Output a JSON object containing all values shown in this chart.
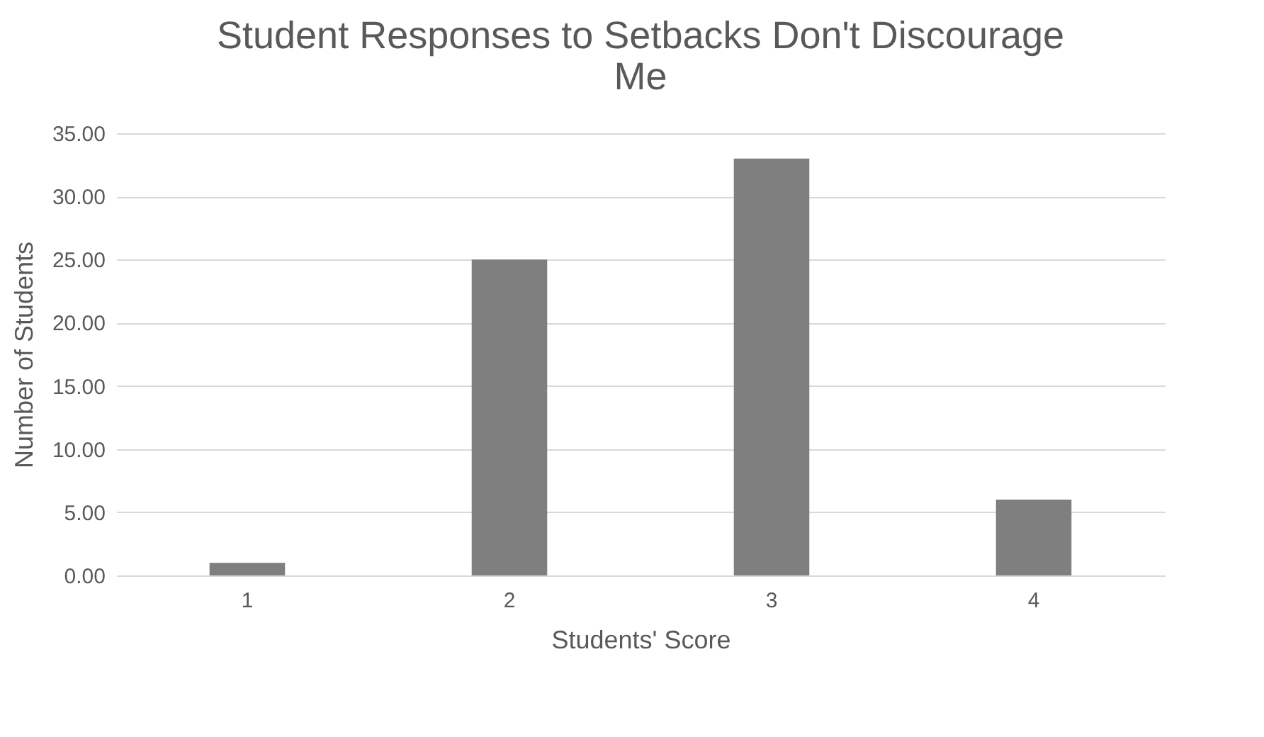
{
  "chart_data": {
    "type": "bar",
    "title": "Student Responses to Setbacks Don't Discourage Me",
    "xlabel": "Students' Score",
    "ylabel": "Number of Students",
    "categories": [
      "1",
      "2",
      "3",
      "4"
    ],
    "values": [
      1,
      25,
      33,
      6
    ],
    "color": "#7f7f7f",
    "ylim": [
      0,
      35
    ],
    "yticks": [
      {
        "value": 0,
        "label": "0.00"
      },
      {
        "value": 5,
        "label": "5.00"
      },
      {
        "value": 10,
        "label": "10.00"
      },
      {
        "value": 15,
        "label": "15.00"
      },
      {
        "value": 20,
        "label": "20.00"
      },
      {
        "value": 25,
        "label": "25.00"
      },
      {
        "value": 30,
        "label": "30.00"
      },
      {
        "value": 35,
        "label": "35.00"
      }
    ],
    "grid": "y"
  }
}
